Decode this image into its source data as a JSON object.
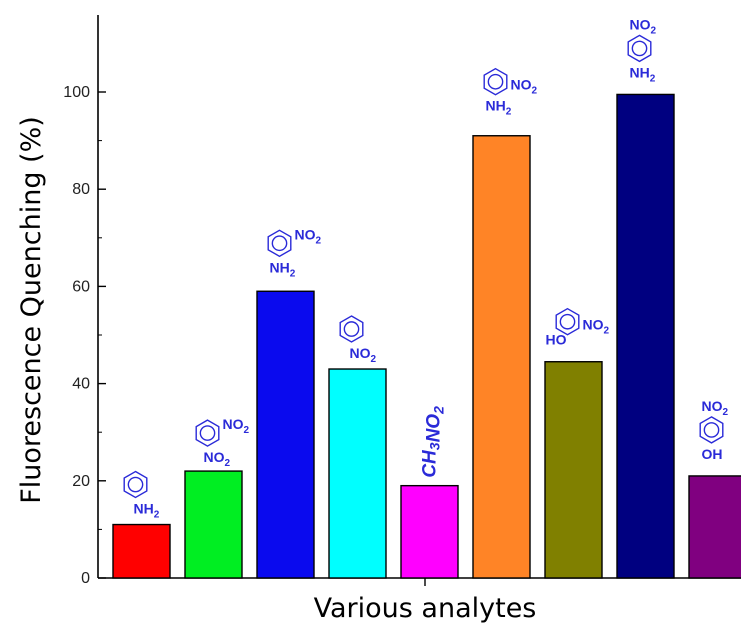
{
  "chart_data": {
    "type": "bar",
    "xlabel": "Various analytes",
    "ylabel": "Fluorescence Quenching (%)",
    "ylim": [
      0,
      115
    ],
    "yticks": [
      0,
      20,
      40,
      60,
      80,
      100
    ],
    "grid": false,
    "legend": "none",
    "bars": [
      {
        "value": 11,
        "color": "#ff0000",
        "label_lines": [
          {
            "t": "NH",
            "s": "2"
          }
        ],
        "ring": true
      },
      {
        "value": 22,
        "color": "#00ee22",
        "label_lines": [
          {
            "t": "NO",
            "s": "2"
          },
          {
            "t": "NO",
            "s": "2"
          }
        ],
        "ring": true
      },
      {
        "value": 59,
        "color": "#0a0aee",
        "label_lines": [
          {
            "t": "NO",
            "s": "2"
          },
          {
            "t": "NH",
            "s": "2"
          }
        ],
        "ring": true
      },
      {
        "value": 43,
        "color": "#00ffff",
        "label_lines": [
          {
            "t": "NO",
            "s": "2"
          }
        ],
        "ring": true
      },
      {
        "value": 19,
        "color": "#ff00ff",
        "label_lines": [
          {
            "t": "CH",
            "s": "3"
          },
          {
            "t": "NO",
            "s": "2"
          }
        ],
        "ring": false
      },
      {
        "value": 91,
        "color": "#ff8426",
        "label_lines": [
          {
            "t": "NO",
            "s": "2"
          },
          {
            "t": "NH",
            "s": "2"
          }
        ],
        "ring": true
      },
      {
        "value": 44.5,
        "color": "#808000",
        "label_lines": [
          {
            "t": "NO",
            "s": "2"
          },
          {
            "t": "HO",
            "s": ""
          }
        ],
        "ring": true
      },
      {
        "value": 99.5,
        "color": "#000080",
        "label_lines": [
          {
            "t": "NO",
            "s": "2"
          },
          {
            "t": "NH",
            "s": "2"
          }
        ],
        "ring": true
      },
      {
        "value": 21,
        "color": "#800080",
        "label_lines": [
          {
            "t": "NO",
            "s": "2"
          },
          {
            "t": "OH",
            "s": ""
          }
        ],
        "ring": true
      }
    ]
  }
}
